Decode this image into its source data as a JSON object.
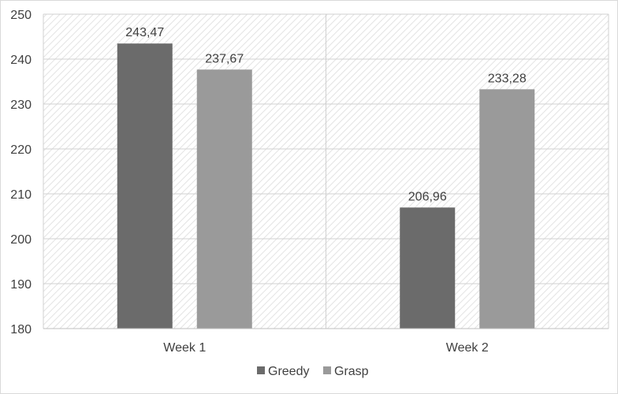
{
  "chart_data": {
    "type": "bar",
    "title": "",
    "xlabel": "",
    "ylabel": "",
    "categories": [
      "Week 1",
      "Week 2"
    ],
    "series": [
      {
        "name": "Greedy",
        "values": [
          243.47,
          206.96
        ],
        "labels": [
          "243,47",
          "206,96"
        ],
        "color": "#6b6b6b"
      },
      {
        "name": "Grasp",
        "values": [
          237.67,
          233.28
        ],
        "labels": [
          "237,67",
          "233,28"
        ],
        "color": "#9a9a9a"
      }
    ],
    "ylim": [
      180,
      250
    ],
    "yticks": [
      "180",
      "190",
      "200",
      "210",
      "220",
      "230",
      "240",
      "250"
    ],
    "grid": true,
    "legend": "bottom-center",
    "plot_background": "hatched"
  }
}
